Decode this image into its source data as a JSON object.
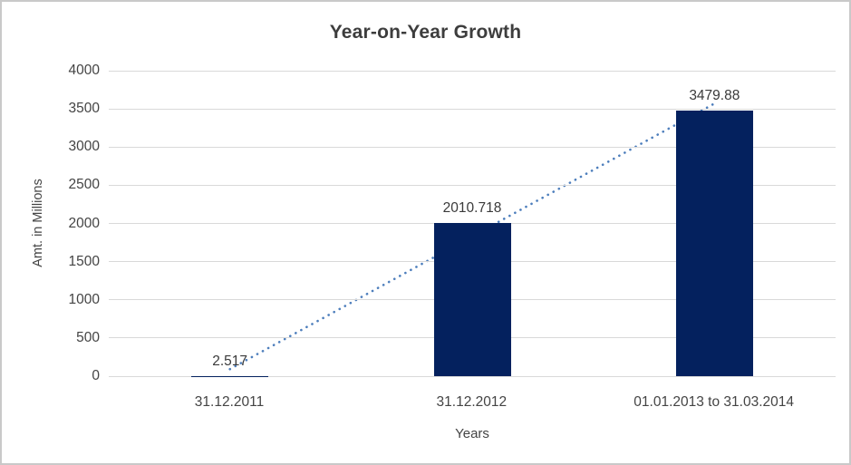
{
  "window": {
    "background": "#ffffff",
    "border_color": "#c9c9c9"
  },
  "text_colors": {
    "title": "#3d3d3d",
    "axis_labels": "#444444",
    "tick_labels": "#444444",
    "data_labels": "#3a3a3a"
  },
  "chart_data": {
    "type": "bar",
    "title": "Year-on-Year Growth",
    "xlabel": "Years",
    "ylabel": "Amt. in Millions",
    "categories": [
      "31.12.2011",
      "31.12.2012",
      "01.01.2013 to 31.03.2014"
    ],
    "values": [
      2.517,
      2010.718,
      3479.88
    ],
    "data_labels": [
      "2.517",
      "2010.718",
      "3479.88"
    ],
    "ylim": [
      0,
      4000
    ],
    "ytick_step": 500,
    "yticks": [
      0,
      500,
      1000,
      1500,
      2000,
      2500,
      3000,
      3500,
      4000
    ],
    "grid": true,
    "legend": "none",
    "bar_color": "#04215e",
    "gridline_color": "#d9d9d9",
    "trendline": {
      "type": "linear",
      "style": "dotted",
      "color": "#4d7ebc",
      "start_value": 92,
      "end_value": 3570
    }
  }
}
